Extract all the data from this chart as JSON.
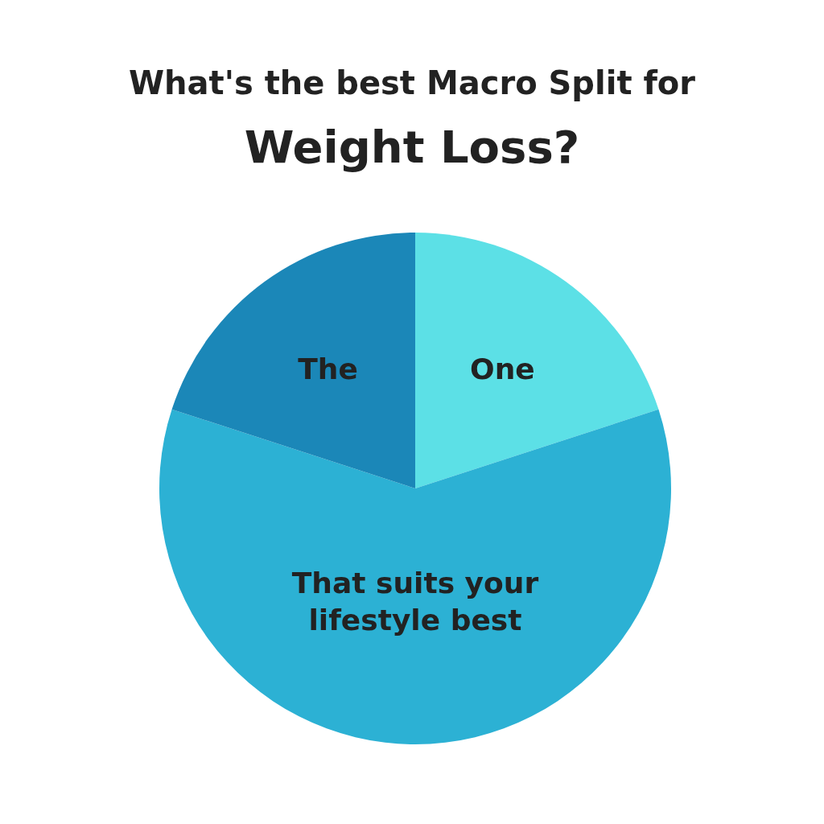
{
  "chart_data": {
    "type": "pie",
    "title": "What's the best Macro Split for",
    "subtitle": "Weight Loss?",
    "categories": [
      "One",
      "That suits your lifestyle best",
      "The"
    ],
    "values": [
      20,
      60,
      20
    ],
    "colors": [
      "#5ce0e6",
      "#2cb1d4",
      "#1b87b8"
    ],
    "legend": false
  }
}
